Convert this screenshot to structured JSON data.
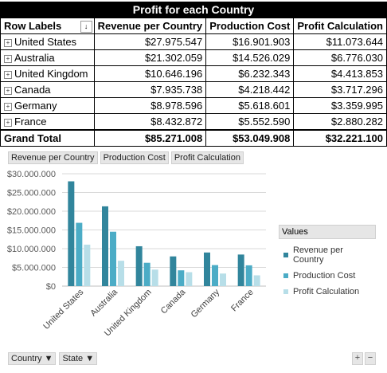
{
  "pivot": {
    "title": "Profit for each Country",
    "headers": [
      "Row Labels",
      "Revenue per Country",
      "Production Cost",
      "Profit Calculation"
    ],
    "filter_icon": "↓",
    "rows": [
      {
        "label": "United States",
        "revenue": "$27.975.547",
        "cost": "$16.901.903",
        "profit": "$11.073.644"
      },
      {
        "label": "Australia",
        "revenue": "$21.302.059",
        "cost": "$14.526.029",
        "profit": "$6.776.030"
      },
      {
        "label": "United Kingdom",
        "revenue": "$10.646.196",
        "cost": "$6.232.343",
        "profit": "$4.413.853"
      },
      {
        "label": "Canada",
        "revenue": "$7.935.738",
        "cost": "$4.218.442",
        "profit": "$3.717.296"
      },
      {
        "label": "Germany",
        "revenue": "$8.978.596",
        "cost": "$5.618.601",
        "profit": "$3.359.995"
      },
      {
        "label": "France",
        "revenue": "$8.432.872",
        "cost": "$5.552.590",
        "profit": "$2.880.282"
      }
    ],
    "total": {
      "label": "Grand Total",
      "revenue": "$85.271.008",
      "cost": "$53.049.908",
      "profit": "$32.221.100"
    }
  },
  "chart_buttons": [
    "Revenue per Country",
    "Production Cost",
    "Profit Calculation"
  ],
  "legend": {
    "title": "Values",
    "items": [
      "Revenue per Country",
      "Production Cost",
      "Profit Calculation"
    ]
  },
  "axis_filters": [
    "Country ▼",
    "State ▼"
  ],
  "zoom_buttons": [
    "+",
    "−"
  ],
  "colors": {
    "revenue": "#31859c",
    "cost": "#4bacc6",
    "profit": "#b7dee8"
  },
  "chart_data": {
    "type": "bar",
    "categories": [
      "United States",
      "Australia",
      "United Kingdom",
      "Canada",
      "Germany",
      "France"
    ],
    "series": [
      {
        "name": "Revenue per Country",
        "values": [
          27975547,
          21302059,
          10646196,
          7935738,
          8978596,
          8432872
        ]
      },
      {
        "name": "Production Cost",
        "values": [
          16901903,
          14526029,
          6232343,
          4218442,
          5618601,
          5552590
        ]
      },
      {
        "name": "Profit Calculation",
        "values": [
          11073644,
          6776030,
          4413853,
          3717296,
          3359995,
          2880282
        ]
      }
    ],
    "yticks": [
      "$0",
      "$5.000.000",
      "$10.000.000",
      "$15.000.000",
      "$20.000.000",
      "$25.000.000",
      "$30.000.000"
    ],
    "ylim": [
      0,
      30000000
    ],
    "grid": true
  }
}
